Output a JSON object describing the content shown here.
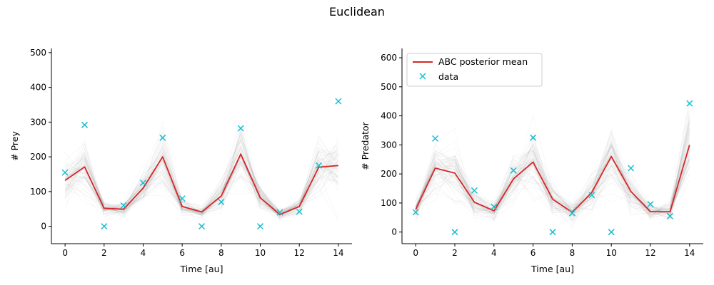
{
  "figure": {
    "suptitle": "Euclidean"
  },
  "legend": {
    "placement": "upper-left",
    "entries": [
      {
        "label": "ABC posterior mean",
        "color": "#d62728",
        "marker": "line"
      },
      {
        "label": "data",
        "color": "#17becf",
        "marker": "x"
      }
    ]
  },
  "chart_data": [
    {
      "type": "line",
      "xlabel": "Time [au]",
      "ylabel": "# Prey",
      "xlim": [
        -0.7,
        14.7
      ],
      "ylim": [
        -50,
        512
      ],
      "xticks": [
        0,
        2,
        4,
        6,
        8,
        10,
        12,
        14
      ],
      "yticks": [
        0,
        100,
        200,
        300,
        400,
        500
      ],
      "x": [
        0,
        1,
        2,
        3,
        4,
        5,
        6,
        7,
        8,
        9,
        10,
        11,
        12,
        13,
        14
      ],
      "series": [
        {
          "name": "ABC posterior mean",
          "color": "#d62728",
          "values": [
            132,
            171,
            52,
            49,
            110,
            200,
            57,
            41,
            87,
            208,
            82,
            34,
            57,
            170,
            175
          ]
        },
        {
          "name": "data",
          "color": "#17becf",
          "style": "x-marker",
          "values": [
            155,
            292,
            0,
            60,
            125,
            255,
            80,
            0,
            70,
            282,
            0,
            40,
            42,
            175,
            360
          ]
        }
      ]
    },
    {
      "type": "line",
      "xlabel": "Time [au]",
      "ylabel": "# Predator",
      "xlim": [
        -0.7,
        14.7
      ],
      "ylim": [
        -40,
        632
      ],
      "xticks": [
        0,
        2,
        4,
        6,
        8,
        10,
        12,
        14
      ],
      "yticks": [
        0,
        100,
        200,
        300,
        400,
        500,
        600
      ],
      "x": [
        0,
        1,
        2,
        3,
        4,
        5,
        6,
        7,
        8,
        9,
        10,
        11,
        12,
        13,
        14
      ],
      "series": [
        {
          "name": "ABC posterior mean",
          "color": "#d62728",
          "values": [
            78,
            220,
            203,
            103,
            73,
            183,
            241,
            113,
            68,
            136,
            260,
            140,
            70,
            70,
            300
          ]
        },
        {
          "name": "data",
          "color": "#17becf",
          "style": "x-marker",
          "values": [
            68,
            322,
            0,
            143,
            87,
            212,
            325,
            0,
            65,
            127,
            0,
            220,
            96,
            55,
            443
          ]
        }
      ]
    }
  ]
}
